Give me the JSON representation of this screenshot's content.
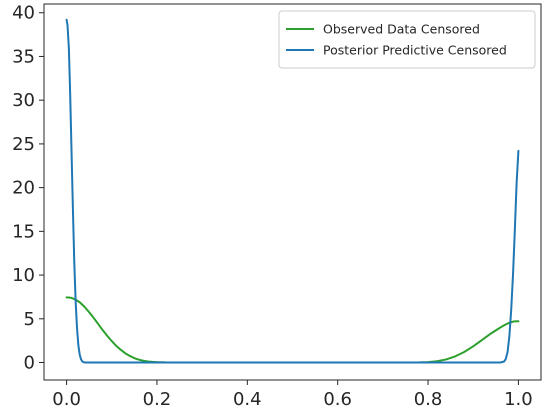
{
  "chart_data": {
    "type": "line",
    "title": "",
    "xlabel": "",
    "ylabel": "",
    "xlim": [
      -0.05,
      1.05
    ],
    "ylim": [
      -2.0,
      41.0
    ],
    "grid": false,
    "legend_position": "top-right",
    "x_ticks": [
      {
        "value": 0.0,
        "label": "0.0"
      },
      {
        "value": 0.2,
        "label": "0.2"
      },
      {
        "value": 0.4,
        "label": "0.4"
      },
      {
        "value": 0.6,
        "label": "0.6"
      },
      {
        "value": 0.8,
        "label": "0.8"
      },
      {
        "value": 1.0,
        "label": "1.0"
      }
    ],
    "y_ticks": [
      {
        "value": 0,
        "label": "0"
      },
      {
        "value": 5,
        "label": "5"
      },
      {
        "value": 10,
        "label": "10"
      },
      {
        "value": 15,
        "label": "15"
      },
      {
        "value": 20,
        "label": "20"
      },
      {
        "value": 25,
        "label": "25"
      },
      {
        "value": 30,
        "label": "30"
      },
      {
        "value": 35,
        "label": "35"
      },
      {
        "value": 40,
        "label": "40"
      }
    ],
    "series": [
      {
        "name": "Observed Data Censored",
        "color": "#2ca02c",
        "x": [
          0.0,
          0.01,
          0.02,
          0.03,
          0.04,
          0.05,
          0.06,
          0.07,
          0.08,
          0.09,
          0.1,
          0.11,
          0.12,
          0.13,
          0.14,
          0.15,
          0.16,
          0.17,
          0.18,
          0.19,
          0.2,
          0.22,
          0.25,
          0.3,
          0.4,
          0.5,
          0.6,
          0.7,
          0.75,
          0.78,
          0.8,
          0.82,
          0.84,
          0.86,
          0.88,
          0.9,
          0.92,
          0.94,
          0.96,
          0.97,
          0.98,
          0.99,
          1.0
        ],
        "y": [
          7.45,
          7.4,
          7.2,
          6.85,
          6.35,
          5.75,
          5.1,
          4.4,
          3.7,
          3.05,
          2.45,
          1.9,
          1.45,
          1.05,
          0.75,
          0.5,
          0.32,
          0.2,
          0.12,
          0.07,
          0.04,
          0.01,
          0.0,
          0.0,
          0.0,
          0.0,
          0.0,
          0.0,
          0.0,
          0.01,
          0.05,
          0.15,
          0.35,
          0.7,
          1.2,
          1.85,
          2.6,
          3.35,
          4.0,
          4.3,
          4.55,
          4.7,
          4.72
        ]
      },
      {
        "name": "Posterior Predictive Censored",
        "color": "#1f77b4",
        "x": [
          0.0,
          0.002,
          0.005,
          0.008,
          0.011,
          0.014,
          0.017,
          0.02,
          0.023,
          0.026,
          0.029,
          0.032,
          0.035,
          0.038,
          0.042,
          0.06,
          0.2,
          0.4,
          0.6,
          0.8,
          0.94,
          0.96,
          0.968,
          0.972,
          0.976,
          0.98,
          0.984,
          0.988,
          0.992,
          0.996,
          1.0
        ],
        "y": [
          39.2,
          38.6,
          36.0,
          30.5,
          24.0,
          17.5,
          11.5,
          7.0,
          4.0,
          2.0,
          0.9,
          0.35,
          0.12,
          0.03,
          0.0,
          0.0,
          0.0,
          0.0,
          0.0,
          0.0,
          0.0,
          0.0,
          0.1,
          0.4,
          1.2,
          3.0,
          6.0,
          10.0,
          15.0,
          20.5,
          24.2
        ]
      }
    ]
  }
}
